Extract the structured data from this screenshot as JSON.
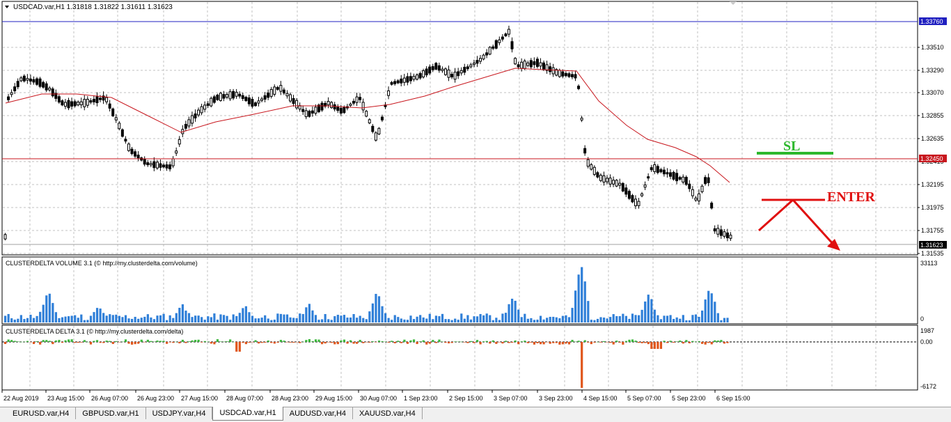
{
  "chart_header": {
    "symbol_title": "USDCAD.var,H1  1.31818 1.31822 1.31611 1.31623"
  },
  "price_axis": {
    "labels": [
      "1.33510",
      "1.33290",
      "1.33070",
      "1.32855",
      "1.32635",
      "1.32415",
      "1.32195",
      "1.31975",
      "1.31755",
      "1.31535"
    ],
    "marker_top": "1.33760",
    "marker_sl": "1.32450",
    "marker_current": "1.31623"
  },
  "annotations": {
    "sl_label": "SL",
    "enter_label": "ENTER",
    "sl_color": "#2db82d",
    "enter_color": "#e01010"
  },
  "volume_panel": {
    "title": "CLUSTERDELTA VOLUME 3.1 (© http://my.clusterdelta.com/volume)",
    "max_label": "33113",
    "min_label": "0",
    "bar_color": "#2f7fd8"
  },
  "delta_panel": {
    "title": "CLUSTERDELTA DELTA 3.1 (© http://my.clusterdelta.com/delta)",
    "max_label": "1987",
    "zero_label": "0.00",
    "min_label": "-6172",
    "positive_color": "#3cb83c",
    "negative_color": "#e0561c"
  },
  "time_axis": {
    "labels": [
      "22 Aug 2019",
      "23 Aug 15:00",
      "26 Aug 07:00",
      "26 Aug 23:00",
      "27 Aug 15:00",
      "28 Aug 07:00",
      "28 Aug 23:00",
      "29 Aug 15:00",
      "30 Aug 07:00",
      "1 Sep 23:00",
      "2 Sep 15:00",
      "3 Sep 07:00",
      "3 Sep 23:00",
      "4 Sep 15:00",
      "5 Sep 07:00",
      "5 Sep 23:00",
      "6 Sep 15:00"
    ]
  },
  "tabs": [
    {
      "label": "EURUSD.var,H4",
      "active": false
    },
    {
      "label": "GBPUSD.var,H1",
      "active": false
    },
    {
      "label": "USDJPY.var,H4",
      "active": false
    },
    {
      "label": "USDCAD.var,H1",
      "active": true
    },
    {
      "label": "AUDUSD.var,H4",
      "active": false
    },
    {
      "label": "XAUUSD.var,H4",
      "active": false
    }
  ]
}
